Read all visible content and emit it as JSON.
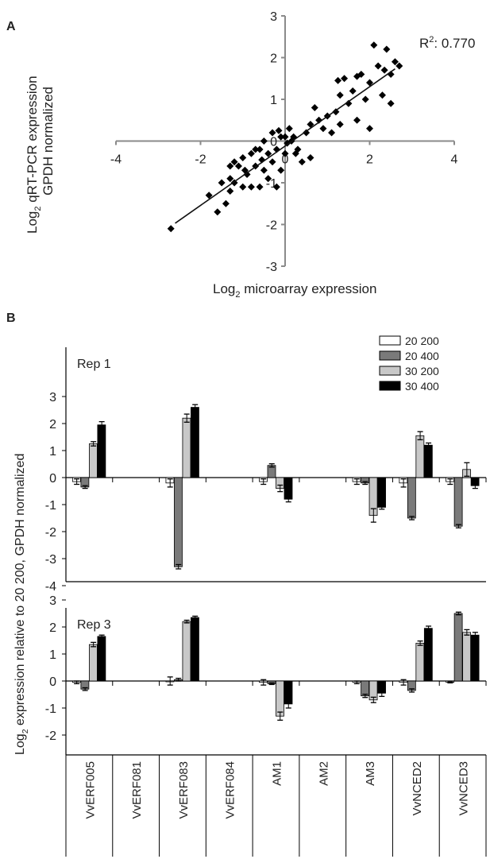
{
  "panels": {
    "a": "A",
    "b": "B"
  },
  "chart_data": [
    {
      "type": "scatter",
      "panel": "A",
      "xlabel_main": "Log",
      "xlabel_sub": "2",
      "xlabel_rest": " microarray expression",
      "ylabel_main": "Log",
      "ylabel_sub": "2",
      "ylabel_rest": " qRT-PCR expression",
      "ylabel_line2": "GPDH normalized",
      "annotation_main": "R",
      "annotation_sup": "2",
      "annotation_rest": ": 0.770",
      "xlim": [
        -4,
        4
      ],
      "ylim": [
        -3,
        3
      ],
      "xticks": [
        "-4",
        "-2",
        "0",
        "2",
        "4"
      ],
      "yticks": [
        "3",
        "2",
        "1",
        "0",
        "-1",
        "-2",
        "-3"
      ],
      "fit_line": {
        "x": [
          -2.6,
          2.6
        ],
        "y": [
          -1.97,
          1.73
        ]
      },
      "points": [
        [
          -2.7,
          -2.1
        ],
        [
          -1.8,
          -1.3
        ],
        [
          -1.6,
          -1.7
        ],
        [
          -1.5,
          -1.0
        ],
        [
          -1.4,
          -1.5
        ],
        [
          -1.3,
          -1.2
        ],
        [
          -1.3,
          -0.9
        ],
        [
          -1.2,
          -1.0
        ],
        [
          -1.2,
          -0.5
        ],
        [
          -1.1,
          -0.6
        ],
        [
          -1.0,
          -1.1
        ],
        [
          -1.0,
          -0.4
        ],
        [
          -0.9,
          -0.8
        ],
        [
          -0.8,
          -0.3
        ],
        [
          -0.8,
          -1.1
        ],
        [
          -0.7,
          -0.6
        ],
        [
          -0.7,
          -0.2
        ],
        [
          -0.6,
          -1.1
        ],
        [
          -0.6,
          -0.2
        ],
        [
          -0.5,
          -0.7
        ],
        [
          -0.5,
          0.0
        ],
        [
          -0.4,
          -0.9
        ],
        [
          -0.4,
          -0.3
        ],
        [
          -0.3,
          -0.5
        ],
        [
          -0.3,
          0.2
        ],
        [
          -0.2,
          -1.1
        ],
        [
          -0.2,
          -0.2
        ],
        [
          -0.1,
          0.1
        ],
        [
          -0.1,
          -0.7
        ],
        [
          0.0,
          -0.3
        ],
        [
          0.0,
          0.1
        ],
        [
          0.05,
          -0.05
        ],
        [
          0.1,
          0.3
        ],
        [
          0.15,
          0.0
        ],
        [
          0.2,
          0.1
        ],
        [
          0.3,
          -0.2
        ],
        [
          0.4,
          -0.5
        ],
        [
          0.5,
          0.2
        ],
        [
          0.6,
          0.4
        ],
        [
          0.6,
          -0.4
        ],
        [
          0.7,
          0.8
        ],
        [
          0.8,
          0.5
        ],
        [
          0.9,
          0.3
        ],
        [
          1.0,
          0.6
        ],
        [
          1.1,
          0.2
        ],
        [
          1.2,
          0.7
        ],
        [
          1.3,
          1.1
        ],
        [
          1.3,
          0.4
        ],
        [
          1.4,
          1.5
        ],
        [
          1.5,
          0.9
        ],
        [
          1.6,
          1.2
        ],
        [
          1.7,
          0.5
        ],
        [
          1.8,
          1.6
        ],
        [
          1.9,
          1.0
        ],
        [
          2.0,
          0.3
        ],
        [
          2.0,
          1.4
        ],
        [
          2.1,
          2.3
        ],
        [
          2.2,
          1.8
        ],
        [
          2.3,
          1.1
        ],
        [
          2.4,
          2.2
        ],
        [
          2.5,
          0.9
        ],
        [
          2.5,
          1.6
        ],
        [
          2.6,
          1.9
        ],
        [
          2.7,
          1.8
        ],
        [
          -1.3,
          -0.6
        ],
        [
          -0.95,
          -0.7
        ],
        [
          -0.55,
          -0.45
        ],
        [
          -0.15,
          0.25
        ],
        [
          0.25,
          -0.3
        ],
        [
          1.25,
          1.45
        ],
        [
          1.7,
          1.55
        ],
        [
          2.35,
          1.7
        ]
      ]
    },
    {
      "type": "bar",
      "panel": "B",
      "ylabel_main": "Log",
      "ylabel_sub": "2",
      "ylabel_rest": " expression relative to 20 200, GPDH normalized",
      "categories": [
        "VvERF005",
        "VvERF081",
        "VvERF083",
        "VvERF084",
        "AM1",
        "AM2",
        "AM3",
        "VvNCED2",
        "VvNCED3"
      ],
      "legend": [
        {
          "name": "20 200",
          "color": "#ffffff"
        },
        {
          "name": "20 400",
          "color": "#7a7a7a"
        },
        {
          "name": "30 200",
          "color": "#c8c8c8"
        },
        {
          "name": "30 400",
          "color": "#000000"
        }
      ],
      "subplots": [
        {
          "label": "Rep 1",
          "ylim": [
            -4,
            4
          ],
          "yticks": [
            "3",
            "2",
            "1",
            "0",
            "-1",
            "-2",
            "-3",
            "-4"
          ],
          "series": [
            {
              "name": "20 200",
              "values": [
                -0.15,
                null,
                -0.2,
                null,
                -0.15,
                null,
                -0.15,
                -0.2,
                -0.15
              ],
              "errors": [
                0.1,
                null,
                0.15,
                null,
                0.1,
                null,
                0.1,
                0.15,
                0.1
              ]
            },
            {
              "name": "20 400",
              "values": [
                -0.35,
                null,
                -3.3,
                null,
                0.45,
                null,
                -0.2,
                -1.5,
                -1.8
              ],
              "errors": [
                0.05,
                null,
                0.08,
                null,
                0.06,
                null,
                0.05,
                0.06,
                0.06
              ]
            },
            {
              "name": "30 200",
              "values": [
                1.25,
                null,
                2.2,
                null,
                -0.4,
                null,
                -1.4,
                1.55,
                0.3
              ],
              "errors": [
                0.08,
                null,
                0.15,
                null,
                0.12,
                null,
                0.25,
                0.15,
                0.25
              ]
            },
            {
              "name": "30 400",
              "values": [
                1.95,
                null,
                2.6,
                null,
                -0.8,
                null,
                -1.1,
                1.2,
                -0.3
              ],
              "errors": [
                0.12,
                null,
                0.1,
                null,
                0.1,
                null,
                0.07,
                0.08,
                0.1
              ]
            }
          ]
        },
        {
          "label": "Rep 3",
          "ylim": [
            -3,
            3
          ],
          "yticks": [
            "3",
            "2",
            "1",
            "0",
            "-1",
            "-2"
          ],
          "series": [
            {
              "name": "20 200",
              "values": [
                -0.05,
                null,
                0.0,
                null,
                -0.05,
                null,
                -0.05,
                -0.05,
                -0.05
              ],
              "errors": [
                0.05,
                null,
                0.15,
                null,
                0.1,
                null,
                0.05,
                0.1,
                0.02
              ]
            },
            {
              "name": "20 400",
              "values": [
                -0.3,
                null,
                0.05,
                null,
                -0.1,
                null,
                -0.55,
                -0.35,
                2.5
              ],
              "errors": [
                0.05,
                null,
                0.05,
                null,
                0.03,
                null,
                0.06,
                0.06,
                0.05
              ]
            },
            {
              "name": "30 200",
              "values": [
                1.35,
                null,
                2.2,
                null,
                -1.3,
                null,
                -0.7,
                1.4,
                1.8
              ],
              "errors": [
                0.08,
                null,
                0.05,
                null,
                0.15,
                null,
                0.1,
                0.08,
                0.1
              ]
            },
            {
              "name": "30 400",
              "values": [
                1.65,
                null,
                2.35,
                null,
                -0.85,
                null,
                -0.45,
                1.95,
                1.7
              ],
              "errors": [
                0.05,
                null,
                0.05,
                null,
                0.15,
                null,
                0.12,
                0.08,
                0.1
              ]
            }
          ]
        }
      ]
    }
  ]
}
